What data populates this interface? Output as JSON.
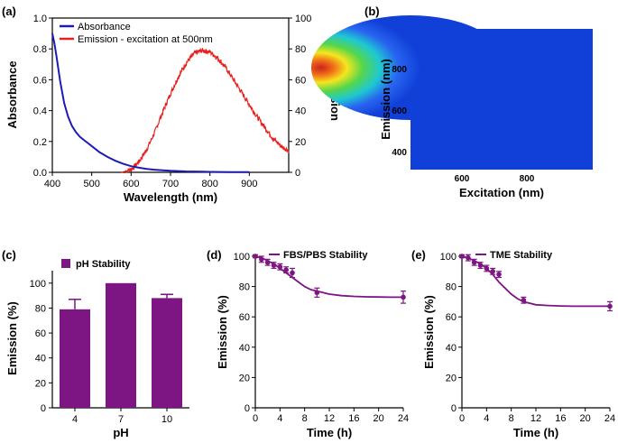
{
  "panels": {
    "a": "(a)",
    "b": "(b)",
    "c": "(c)",
    "d": "(d)",
    "e": "(e)"
  },
  "colors": {
    "absorbance": "#1c1cb4",
    "emission": "#e8201e",
    "purple": "#7d1583",
    "axis": "#000000"
  },
  "chart_data": [
    {
      "id": "a",
      "type": "line",
      "xlabel": "Wavelength (nm)",
      "ylabel": "Absorbance",
      "y2label": "Emission",
      "xlim": [
        400,
        1000
      ],
      "xticks": [
        400,
        500,
        600,
        700,
        800,
        900
      ],
      "ylim": [
        0,
        1.0
      ],
      "yticks": [
        "0.0",
        "0.2",
        "0.4",
        "0.6",
        "0.8",
        "1.0"
      ],
      "y2lim": [
        0,
        100
      ],
      "y2ticks": [
        "0",
        "20",
        "40",
        "60",
        "80",
        "100"
      ],
      "series": [
        {
          "name": "Absorbance",
          "axis": "left",
          "x": [
            400,
            405,
            410,
            420,
            430,
            440,
            450,
            460,
            470,
            480,
            490,
            500,
            520,
            540,
            560,
            580,
            600,
            620,
            640,
            660,
            680,
            700,
            720,
            740,
            760,
            780,
            800,
            850,
            900
          ],
          "y": [
            0.9,
            0.84,
            0.76,
            0.59,
            0.45,
            0.36,
            0.3,
            0.26,
            0.23,
            0.21,
            0.19,
            0.17,
            0.13,
            0.1,
            0.075,
            0.055,
            0.04,
            0.03,
            0.022,
            0.017,
            0.013,
            0.01,
            0.008,
            0.006,
            0.005,
            0.004,
            0.003,
            0.002,
            0.001
          ]
        },
        {
          "name": "Emission - excitation at 500nm",
          "axis": "right",
          "x": [
            575,
            590,
            600,
            610,
            620,
            640,
            660,
            680,
            700,
            720,
            740,
            760,
            780,
            800,
            820,
            840,
            860,
            880,
            900,
            920,
            940,
            960,
            980,
            1000
          ],
          "y": [
            0,
            1,
            2,
            4,
            7,
            15,
            26,
            39,
            51,
            62,
            71,
            77,
            79,
            78,
            74,
            68,
            60,
            52,
            44,
            36,
            29,
            22,
            17,
            14
          ]
        }
      ]
    },
    {
      "id": "b",
      "type": "heatmap",
      "xlabel": "Excitation (nm)",
      "ylabel": "Emission (nm)",
      "xticks": [
        "600",
        "800"
      ],
      "yticks": [
        "400",
        "600",
        "800"
      ],
      "peak": {
        "excitation": 470,
        "emission": 810
      }
    },
    {
      "id": "c",
      "type": "bar",
      "title": "pH Stability",
      "categories": [
        "4",
        "7",
        "10"
      ],
      "values": [
        79,
        100,
        88
      ],
      "errors": [
        8,
        0,
        3
      ],
      "xlabel": "pH",
      "ylabel": "Emission (%)",
      "ylim": [
        0,
        110
      ],
      "yticks": [
        "0",
        "20",
        "40",
        "60",
        "80",
        "100"
      ]
    },
    {
      "id": "d",
      "type": "scatter",
      "title": "FBS/PBS Stability",
      "xlabel": "Time (h)",
      "ylabel": "Emission (%)",
      "xlim": [
        0,
        24
      ],
      "xticks": [
        "0",
        "4",
        "8",
        "12",
        "16",
        "20",
        "24"
      ],
      "ylim": [
        0,
        100
      ],
      "yticks": [
        "0",
        "20",
        "40",
        "60",
        "80",
        "100"
      ],
      "points": {
        "x": [
          0,
          1,
          2,
          3,
          4,
          5,
          6,
          10,
          24
        ],
        "y": [
          100,
          98,
          96,
          94,
          93,
          91,
          89,
          76,
          73
        ],
        "err": [
          1,
          2,
          2,
          2,
          2,
          2,
          3,
          3,
          4
        ]
      },
      "fit": {
        "x": [
          0,
          1,
          2,
          3,
          4,
          5,
          6,
          7,
          8,
          9,
          10,
          12,
          14,
          16,
          18,
          20,
          22,
          24
        ],
        "y": [
          100,
          99,
          97,
          95,
          92,
          89,
          86,
          83,
          80,
          78,
          77,
          75,
          74,
          73.5,
          73.2,
          73.1,
          73,
          73
        ]
      }
    },
    {
      "id": "e",
      "type": "scatter",
      "title": "TME Stability",
      "xlabel": "Time (h)",
      "ylabel": "Emission (%)",
      "xlim": [
        0,
        24
      ],
      "xticks": [
        "0",
        "4",
        "8",
        "12",
        "16",
        "20",
        "24"
      ],
      "ylim": [
        0,
        100
      ],
      "yticks": [
        "0",
        "20",
        "40",
        "60",
        "80",
        "100"
      ],
      "points": {
        "x": [
          0,
          1,
          2,
          3,
          4,
          5,
          6,
          10,
          24
        ],
        "y": [
          100,
          99,
          96,
          94,
          92,
          90,
          88,
          71,
          67
        ],
        "err": [
          1,
          2,
          2,
          2,
          2,
          2,
          2,
          2,
          3
        ]
      },
      "fit": {
        "x": [
          0,
          1,
          2,
          3,
          4,
          5,
          6,
          7,
          8,
          9,
          10,
          12,
          14,
          16,
          18,
          20,
          22,
          24
        ],
        "y": [
          100,
          99,
          97,
          95,
          92,
          88,
          83,
          79,
          75,
          72,
          70,
          68,
          67.5,
          67.2,
          67,
          67,
          67,
          67
        ]
      }
    }
  ]
}
